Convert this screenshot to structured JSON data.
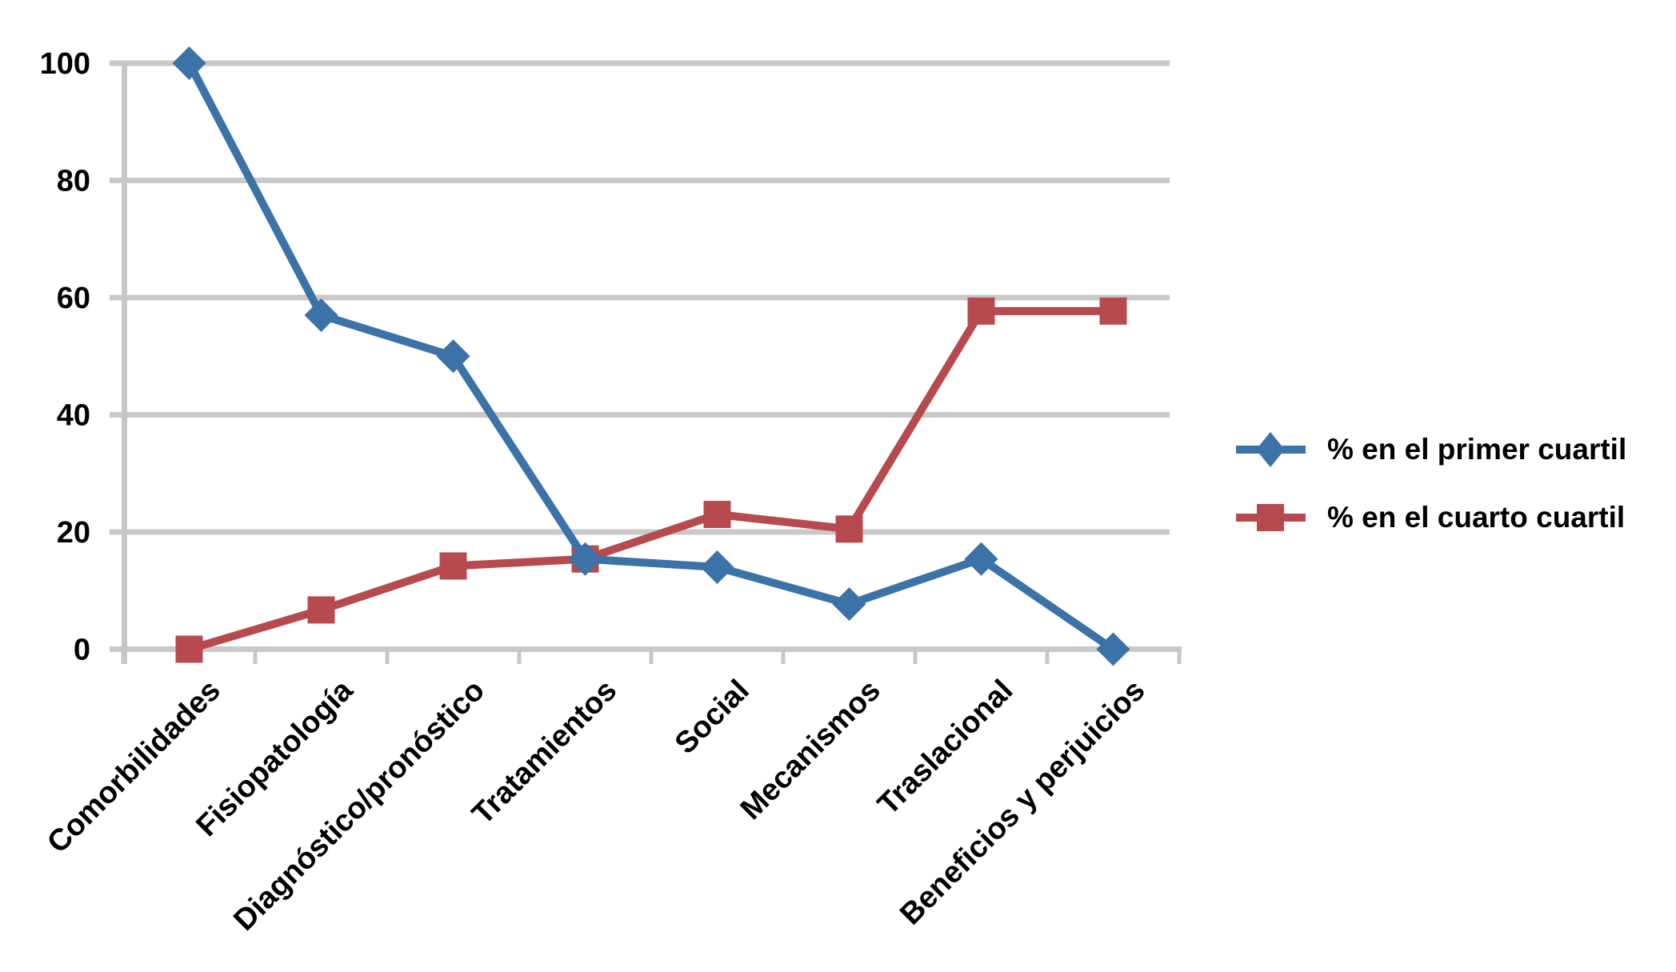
{
  "chart_data": {
    "type": "line",
    "title": "",
    "xlabel": "",
    "ylabel": "",
    "categories": [
      "Comorbilidades",
      "Fisiopatología",
      "Diagnóstico/pronóstico",
      "Tratamientos",
      "Social",
      "Mecanismos",
      "Traslacional",
      "Beneficios y perjuicios"
    ],
    "series": [
      {
        "name": "% en el primer cuartil",
        "marker": "diamond",
        "color": "#3B72A8",
        "values": [
          100,
          57,
          50,
          15.4,
          14,
          7.7,
          15.4,
          0
        ]
      },
      {
        "name": "% en el cuarto cuartil",
        "marker": "square",
        "color": "#B64A4F",
        "values": [
          0,
          6.7,
          14.2,
          15.4,
          23,
          20.5,
          57.7,
          57.7
        ]
      }
    ],
    "ylim": [
      0,
      100
    ],
    "yticks": [
      0,
      20,
      40,
      60,
      80,
      100
    ],
    "grid": "horizontal",
    "legend_position": "right"
  },
  "style": {
    "grid_color": "#C9C9C9",
    "axis_color": "#C6C6C6",
    "text_color": "#000000",
    "background": "#FFFFFF"
  }
}
